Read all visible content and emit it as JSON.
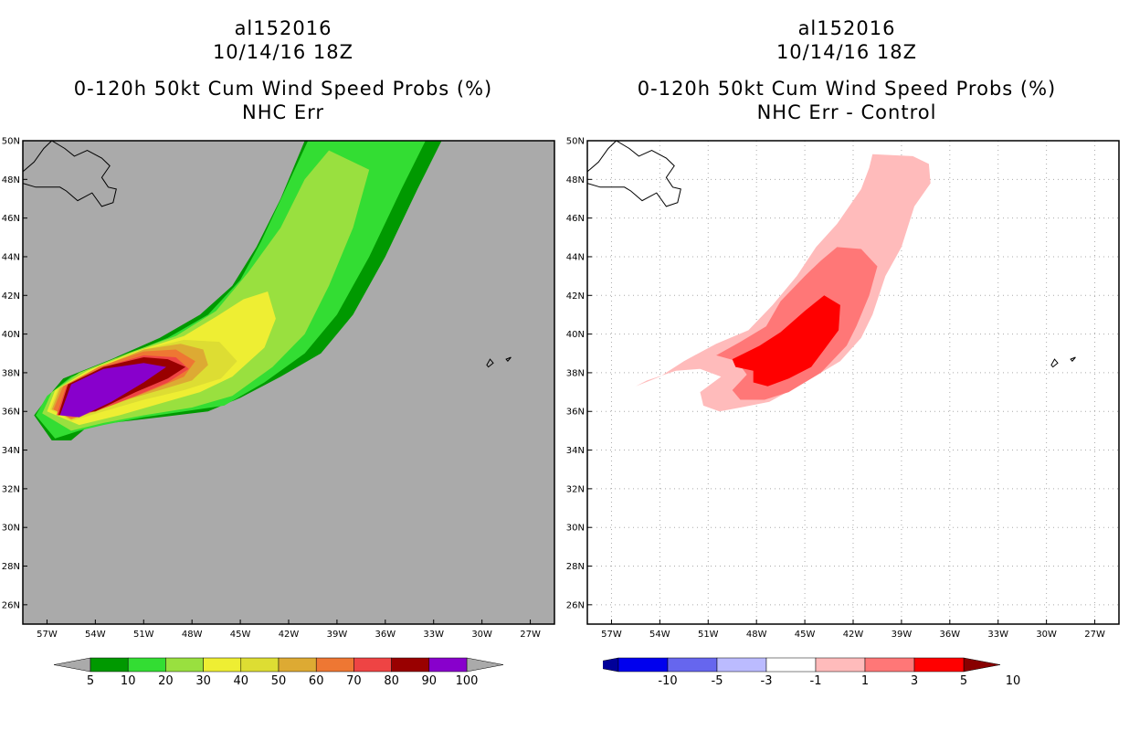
{
  "panels": [
    {
      "title_line1": "al152016",
      "title_line2": "10/14/16 18Z",
      "title_line3": "0-120h 50kt Cum Wind Speed Probs (%)",
      "title_line4": "NHC Err"
    },
    {
      "title_line1": "al152016",
      "title_line2": "10/14/16 18Z",
      "title_line3": "0-120h 50kt Cum Wind Speed Probs (%)",
      "title_line4": "NHC Err - Control"
    }
  ],
  "colors": {
    "land_bg": "#aaaaaa",
    "left_levels": [
      "#009900",
      "#33dd33",
      "#99e03f",
      "#eeee33",
      "#dddd33",
      "#ddaa33",
      "#ee7733",
      "#ee4444",
      "#990000",
      "#8800cc"
    ],
    "right_levels": [
      "#000099",
      "#0000ee",
      "#6666ee",
      "#bbbbff",
      "#ffffff",
      "#ffbbbb",
      "#ff7777",
      "#ff0000",
      "#880000"
    ]
  },
  "chart_data": [
    {
      "type": "heatmap",
      "title": "0-120h 50kt Cum Wind Speed Probs (%) NHC Err",
      "x_ticks": [
        "57W",
        "54W",
        "51W",
        "48W",
        "45W",
        "42W",
        "39W",
        "36W",
        "33W",
        "30W",
        "27W"
      ],
      "y_ticks": [
        "26N",
        "28N",
        "30N",
        "32N",
        "34N",
        "36N",
        "38N",
        "40N",
        "42N",
        "44N",
        "46N",
        "48N",
        "50N"
      ],
      "xlim": [
        -58.5,
        -25.5
      ],
      "ylim": [
        25,
        50
      ],
      "colorbar_labels": [
        "5",
        "10",
        "20",
        "30",
        "40",
        "50",
        "60",
        "70",
        "80",
        "90",
        "100"
      ],
      "contours": [
        {
          "level": 5,
          "points": [
            [
              -57,
              36.7
            ],
            [
              -56,
              37.7
            ],
            [
              -53,
              38.7
            ],
            [
              -50,
              39.8
            ],
            [
              -47.5,
              41
            ],
            [
              -45.5,
              42.5
            ],
            [
              -44,
              44.5
            ],
            [
              -42.5,
              47
            ],
            [
              -41,
              50
            ],
            [
              -32.5,
              50
            ],
            [
              -34,
              47.5
            ],
            [
              -36,
              44
            ],
            [
              -38,
              41
            ],
            [
              -40,
              39
            ],
            [
              -42.5,
              37.8
            ],
            [
              -45,
              36.7
            ],
            [
              -47,
              36
            ],
            [
              -50,
              35.7
            ],
            [
              -53,
              35.4
            ],
            [
              -54.5,
              35.2
            ],
            [
              -55.5,
              34.5
            ],
            [
              -56.7,
              34.5
            ],
            [
              -57.8,
              35.8
            ]
          ]
        },
        {
          "level": 10,
          "points": [
            [
              -57,
              36.8
            ],
            [
              -55.5,
              37.8
            ],
            [
              -52.5,
              38.8
            ],
            [
              -49.5,
              39.8
            ],
            [
              -47,
              41
            ],
            [
              -45,
              42.8
            ],
            [
              -43.7,
              44.8
            ],
            [
              -42.3,
              47.3
            ],
            [
              -40.8,
              50
            ],
            [
              -33.5,
              50
            ],
            [
              -35,
              47.5
            ],
            [
              -37,
              44
            ],
            [
              -39,
              41
            ],
            [
              -41,
              39
            ],
            [
              -43.5,
              37.5
            ],
            [
              -46,
              36.3
            ],
            [
              -48.5,
              36
            ],
            [
              -51,
              35.7
            ],
            [
              -53.5,
              35.3
            ],
            [
              -55,
              35
            ],
            [
              -56.5,
              34.6
            ],
            [
              -57.7,
              35.8
            ]
          ]
        },
        {
          "level": 20,
          "points": [
            [
              -56.7,
              37
            ],
            [
              -55,
              38
            ],
            [
              -52,
              39
            ],
            [
              -49,
              39.9
            ],
            [
              -46.5,
              41.2
            ],
            [
              -44.5,
              43.2
            ],
            [
              -42.5,
              45.5
            ],
            [
              -41,
              48
            ],
            [
              -39.5,
              49.5
            ],
            [
              -37,
              48.5
            ],
            [
              -38,
              45.5
            ],
            [
              -39.5,
              42.5
            ],
            [
              -41,
              40
            ],
            [
              -43,
              38.3
            ],
            [
              -45.5,
              36.8
            ],
            [
              -48,
              36.2
            ],
            [
              -51,
              35.8
            ],
            [
              -53.5,
              35.4
            ],
            [
              -55.5,
              35
            ],
            [
              -57.3,
              35.9
            ]
          ]
        },
        {
          "level": 30,
          "points": [
            [
              -56.5,
              37.1
            ],
            [
              -54.5,
              38.1
            ],
            [
              -51.5,
              39.1
            ],
            [
              -48.5,
              39.9
            ],
            [
              -46.5,
              40.9
            ],
            [
              -44.8,
              41.8
            ],
            [
              -43.3,
              42.2
            ],
            [
              -42.8,
              40.8
            ],
            [
              -43.5,
              39.3
            ],
            [
              -45.5,
              37.8
            ],
            [
              -47.5,
              37
            ],
            [
              -50,
              36.4
            ],
            [
              -52.5,
              35.8
            ],
            [
              -55,
              35.3
            ],
            [
              -57,
              36
            ]
          ]
        },
        {
          "level": 40,
          "points": [
            [
              -56.3,
              37.2
            ],
            [
              -54,
              38.2
            ],
            [
              -51,
              39.2
            ],
            [
              -48.5,
              39.7
            ],
            [
              -46.3,
              39.6
            ],
            [
              -45.2,
              38.6
            ],
            [
              -46.2,
              37.7
            ],
            [
              -48.5,
              37.1
            ],
            [
              -51,
              36.6
            ],
            [
              -53.5,
              36
            ],
            [
              -55.5,
              35.5
            ],
            [
              -56.8,
              36.1
            ]
          ]
        },
        {
          "level": 50,
          "points": [
            [
              -56.2,
              37.2
            ],
            [
              -54,
              38.2
            ],
            [
              -51,
              39.2
            ],
            [
              -48.7,
              39.5
            ],
            [
              -47.3,
              39.2
            ],
            [
              -47,
              38.4
            ],
            [
              -48,
              37.6
            ],
            [
              -50,
              37.1
            ],
            [
              -52.5,
              36.5
            ],
            [
              -55,
              35.7
            ],
            [
              -56.7,
              36.1
            ]
          ]
        },
        {
          "level": 60,
          "points": [
            [
              -56,
              37.3
            ],
            [
              -53.8,
              38.3
            ],
            [
              -51,
              39.1
            ],
            [
              -49,
              39.2
            ],
            [
              -47.8,
              38.6
            ],
            [
              -48.5,
              37.8
            ],
            [
              -50.5,
              37.1
            ],
            [
              -53,
              36.3
            ],
            [
              -55.5,
              35.6
            ],
            [
              -56.6,
              36.1
            ]
          ]
        },
        {
          "level": 70,
          "points": [
            [
              -55.8,
              37.3
            ],
            [
              -53.5,
              38.3
            ],
            [
              -51,
              38.9
            ],
            [
              -49,
              38.8
            ],
            [
              -48.2,
              38.2
            ],
            [
              -49.5,
              37.5
            ],
            [
              -51.5,
              36.8
            ],
            [
              -54,
              36
            ],
            [
              -56.4,
              35.8
            ]
          ]
        },
        {
          "level": 80,
          "points": [
            [
              -55.7,
              37.4
            ],
            [
              -53.5,
              38.3
            ],
            [
              -51,
              38.8
            ],
            [
              -49.5,
              38.7
            ],
            [
              -48.4,
              38.3
            ],
            [
              -49.5,
              37.7
            ],
            [
              -51.5,
              37
            ],
            [
              -54,
              36
            ],
            [
              -56.3,
              35.8
            ]
          ]
        },
        {
          "level": 90,
          "points": [
            [
              -55.5,
              37.4
            ],
            [
              -53.5,
              38.2
            ],
            [
              -51,
              38.5
            ],
            [
              -49.6,
              38.3
            ],
            [
              -51,
              37.5
            ],
            [
              -53,
              36.5
            ],
            [
              -55,
              35.7
            ],
            [
              -56.2,
              35.8
            ]
          ]
        }
      ]
    },
    {
      "type": "heatmap",
      "title": "0-120h 50kt Cum Wind Speed Probs (%) NHC Err - Control",
      "x_ticks": [
        "57W",
        "54W",
        "51W",
        "48W",
        "45W",
        "42W",
        "39W",
        "36W",
        "33W",
        "30W",
        "27W"
      ],
      "y_ticks": [
        "26N",
        "28N",
        "30N",
        "32N",
        "34N",
        "36N",
        "38N",
        "40N",
        "42N",
        "44N",
        "46N",
        "48N",
        "50N"
      ],
      "xlim": [
        -58.5,
        -25.5
      ],
      "ylim": [
        25,
        50
      ],
      "colorbar_labels": [
        "-10",
        "-5",
        "-3",
        "-1",
        "1",
        "3",
        "5",
        "10"
      ],
      "contours": [
        {
          "level": 1,
          "points": [
            [
              -55.5,
              37.3
            ],
            [
              -54,
              37.8
            ],
            [
              -52.5,
              38.6
            ],
            [
              -50.5,
              39.5
            ],
            [
              -48.5,
              40.2
            ],
            [
              -47,
              41.5
            ],
            [
              -45.5,
              43
            ],
            [
              -44.3,
              44.5
            ],
            [
              -43,
              45.7
            ],
            [
              -41.5,
              47.5
            ],
            [
              -41,
              48.6
            ],
            [
              -40.8,
              49.3
            ],
            [
              -38.3,
              49.2
            ],
            [
              -37.3,
              48.8
            ],
            [
              -37.2,
              47.8
            ],
            [
              -38.2,
              46.6
            ],
            [
              -39,
              44.5
            ],
            [
              -40,
              43
            ],
            [
              -40.8,
              41
            ],
            [
              -41.5,
              39.8
            ],
            [
              -42.8,
              38.6
            ],
            [
              -45,
              37.5
            ],
            [
              -47.2,
              36.5
            ],
            [
              -49,
              36.2
            ],
            [
              -50.3,
              36
            ],
            [
              -51.3,
              36.3
            ],
            [
              -51.5,
              37
            ],
            [
              -50.2,
              37.8
            ],
            [
              -51.5,
              38.2
            ],
            [
              -53,
              38.1
            ],
            [
              -54.8,
              37.6
            ]
          ]
        },
        {
          "level": 3,
          "points": [
            [
              -50.5,
              38.9
            ],
            [
              -49,
              39.6
            ],
            [
              -47.4,
              40.4
            ],
            [
              -46.5,
              41.7
            ],
            [
              -45,
              43
            ],
            [
              -44,
              43.8
            ],
            [
              -43,
              44.5
            ],
            [
              -41.5,
              44.4
            ],
            [
              -40.5,
              43.5
            ],
            [
              -41,
              42
            ],
            [
              -41.8,
              40.4
            ],
            [
              -42.4,
              39.4
            ],
            [
              -44,
              38
            ],
            [
              -46,
              37
            ],
            [
              -47.5,
              36.6
            ],
            [
              -49,
              36.6
            ],
            [
              -49.5,
              37.1
            ],
            [
              -48.6,
              37.9
            ],
            [
              -49.2,
              38.6
            ]
          ]
        },
        {
          "level": 5,
          "points": [
            [
              -49.5,
              38.7
            ],
            [
              -47.8,
              39.4
            ],
            [
              -46.5,
              40.1
            ],
            [
              -45,
              41.2
            ],
            [
              -43.8,
              42
            ],
            [
              -42.8,
              41.5
            ],
            [
              -42.9,
              40.2
            ],
            [
              -43.7,
              39.3
            ],
            [
              -44.6,
              38.3
            ],
            [
              -46,
              37.7
            ],
            [
              -47.3,
              37.3
            ],
            [
              -48.2,
              37.5
            ],
            [
              -48.2,
              38.1
            ],
            [
              -49.3,
              38.3
            ]
          ]
        }
      ]
    }
  ]
}
